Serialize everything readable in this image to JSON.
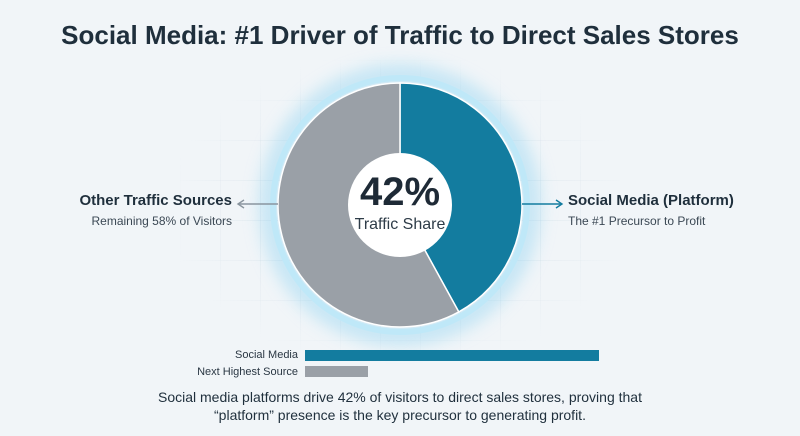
{
  "chart_data": [
    {
      "type": "pie",
      "title": "Social Media: #1 Driver of Traffic to Direct Sales Stores",
      "center_value": "42%",
      "center_label": "Traffic Share",
      "slices": [
        {
          "name": "Social Media (Platform)",
          "value": 42,
          "color": "#137c9f",
          "note": "The #1 Precursor to Profit"
        },
        {
          "name": "Other Traffic Sources",
          "value": 58,
          "color": "#9aa0a7",
          "note": "Remaining 58% of Visitors"
        }
      ]
    },
    {
      "type": "bar",
      "categories": [
        "Social Media",
        "Next Highest Source"
      ],
      "values": [
        42,
        9
      ],
      "colors": [
        "#137c9f",
        "#9aa0a7"
      ]
    }
  ],
  "caption": {
    "line1": "Social media platforms drive 42% of visitors to direct sales stores, proving that",
    "line2": "“platform” presence is the key precursor to generating profit."
  }
}
